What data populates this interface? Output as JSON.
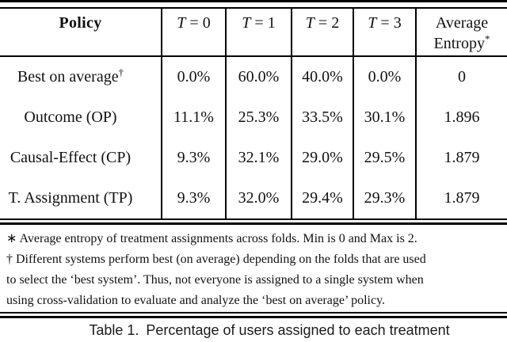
{
  "table": {
    "header": {
      "policy": "Policy",
      "tcols": [
        {
          "var": "T",
          "eq": "=",
          "val": "0"
        },
        {
          "var": "T",
          "eq": "=",
          "val": "1"
        },
        {
          "var": "T",
          "eq": "=",
          "val": "2"
        },
        {
          "var": "T",
          "eq": "=",
          "val": "3"
        }
      ],
      "avg_line1": "Average",
      "avg_line2": "Entropy",
      "avg_sup": "*"
    },
    "rows": [
      {
        "policy": "Best on average",
        "sup": "†",
        "t0": "0.0%",
        "t1": "60.0%",
        "t2": "40.0%",
        "t3": "0.0%",
        "entropy": "0"
      },
      {
        "policy": "Outcome (OP)",
        "sup": "",
        "t0": "11.1%",
        "t1": "25.3%",
        "t2": "33.5%",
        "t3": "30.1%",
        "entropy": "1.896"
      },
      {
        "policy": "Causal-Effect (CP)",
        "sup": "",
        "t0": "9.3%",
        "t1": "32.1%",
        "t2": "29.0%",
        "t3": "29.5%",
        "entropy": "1.879"
      },
      {
        "policy": "T. Assignment (TP)",
        "sup": "",
        "t0": "9.3%",
        "t1": "32.0%",
        "t2": "29.4%",
        "t3": "29.3%",
        "entropy": "1.879"
      }
    ]
  },
  "footnotes": {
    "lines": [
      "∗ Average entropy of treatment assignments across folds. Min is 0 and Max is 2.",
      "† Different systems perform best (on average) depending on the folds that are used",
      "to select the ‘best system’. Thus, not everyone is assigned to a single system when",
      "using cross-validation to evaluate and analyze the ‘best on average’ policy."
    ]
  },
  "caption": {
    "label": "Table 1.",
    "text": "Percentage of users assigned to each treatment"
  },
  "colors": {
    "text": "#111111",
    "background": "#ffffff",
    "rule": "#000000"
  }
}
